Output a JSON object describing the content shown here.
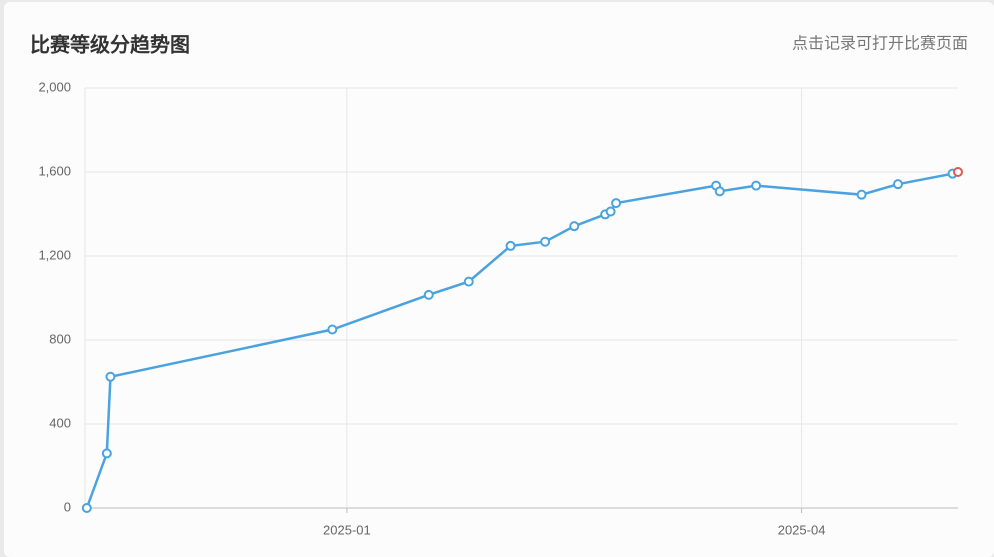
{
  "chart_data": {
    "type": "line",
    "title": "比赛等级分趋势图",
    "subtitle": "点击记录可打开比赛页面",
    "x": [
      2024.857,
      2024.868,
      2024.87,
      2024.992,
      2025.045,
      2025.067,
      2025.09,
      2025.109,
      2025.125,
      2025.142,
      2025.145,
      2025.148,
      2025.203,
      2025.205,
      2025.225,
      2025.283,
      2025.303,
      2025.333,
      2025.336
    ],
    "series": [
      {
        "color": "#4aa3df",
        "highlight_color": "#e05a4f",
        "values": [
          0,
          260,
          625,
          850,
          1015,
          1078,
          1248,
          1268,
          1342,
          1398,
          1412,
          1452,
          1535,
          1508,
          1535,
          1492,
          1542,
          1592,
          1600
        ]
      }
    ],
    "xlim": [
      2024.856,
      2025.336
    ],
    "xticks": [
      {
        "value": 2025,
        "label": "2025-01"
      },
      {
        "value": 2025.25,
        "label": "2025-04"
      }
    ],
    "ylim": [
      0,
      2000
    ],
    "yticks": [
      0,
      400,
      800,
      {
        "value": 1200,
        "label": "1,200"
      },
      {
        "value": 1600,
        "label": "1,600"
      },
      {
        "value": 2000,
        "label": "2,000"
      }
    ],
    "grid": true
  }
}
